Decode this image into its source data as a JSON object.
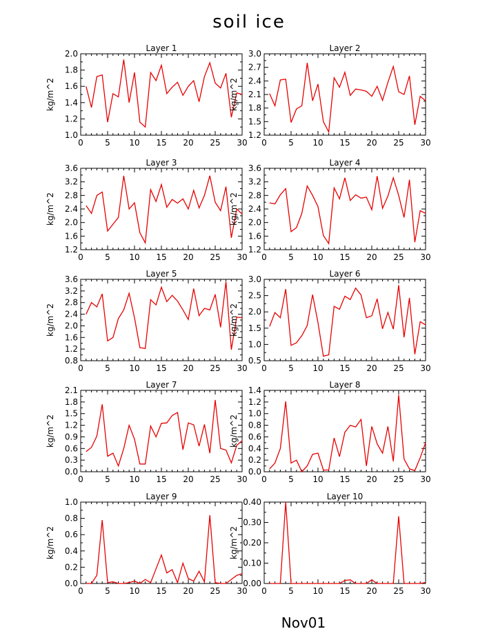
{
  "title": "soil ice",
  "xlabel": "Nov01",
  "chart_data": [
    {
      "type": "line",
      "title": "Layer 1",
      "ylabel": "kg/m^2",
      "xlim": [
        0,
        30
      ],
      "ylim": [
        1.0,
        2.0
      ],
      "xticks": [
        0,
        5,
        10,
        15,
        20,
        25,
        30
      ],
      "yticks": [
        "1.0",
        "1.2",
        "1.4",
        "1.6",
        "1.8",
        "2.0"
      ],
      "color": "#e60000",
      "x": [
        1,
        2,
        3,
        4,
        5,
        6,
        7,
        8,
        9,
        10,
        11,
        12,
        13,
        14,
        15,
        16,
        17,
        18,
        19,
        20,
        21,
        22,
        23,
        24,
        25,
        26,
        27,
        28,
        29,
        30
      ],
      "values": [
        1.6,
        1.34,
        1.72,
        1.74,
        1.16,
        1.51,
        1.47,
        1.93,
        1.4,
        1.77,
        1.16,
        1.1,
        1.77,
        1.67,
        1.86,
        1.51,
        1.59,
        1.65,
        1.49,
        1.6,
        1.67,
        1.41,
        1.72,
        1.89,
        1.64,
        1.58,
        1.76,
        1.22,
        1.52,
        1.5
      ]
    },
    {
      "type": "line",
      "title": "Layer 2",
      "ylabel": "kg/m^2",
      "xlim": [
        0,
        30
      ],
      "ylim": [
        1.2,
        3.0
      ],
      "xticks": [
        0,
        5,
        10,
        15,
        20,
        25,
        30
      ],
      "yticks": [
        "1.2",
        "1.5",
        "1.8",
        "2.1",
        "2.4",
        "2.7",
        "3.0"
      ],
      "color": "#e60000",
      "x": [
        1,
        2,
        3,
        4,
        5,
        6,
        7,
        8,
        9,
        10,
        11,
        12,
        13,
        14,
        15,
        16,
        17,
        18,
        19,
        20,
        21,
        22,
        23,
        24,
        25,
        26,
        27,
        28,
        29,
        30
      ],
      "values": [
        2.12,
        1.85,
        2.42,
        2.44,
        1.48,
        1.78,
        1.85,
        2.8,
        1.96,
        2.33,
        1.5,
        1.27,
        2.47,
        2.26,
        2.59,
        2.08,
        2.22,
        2.2,
        2.17,
        2.06,
        2.28,
        1.97,
        2.37,
        2.72,
        2.16,
        2.1,
        2.51,
        1.43,
        2.06,
        1.96
      ]
    },
    {
      "type": "line",
      "title": "Layer 3",
      "ylabel": "kg/m^2",
      "xlim": [
        0,
        30
      ],
      "ylim": [
        1.2,
        3.6
      ],
      "xticks": [
        0,
        5,
        10,
        15,
        20,
        25,
        30
      ],
      "yticks": [
        "1.2",
        "1.6",
        "2.0",
        "2.4",
        "2.8",
        "3.2",
        "3.6"
      ],
      "color": "#e60000",
      "x": [
        1,
        2,
        3,
        4,
        5,
        6,
        7,
        8,
        9,
        10,
        11,
        12,
        13,
        14,
        15,
        16,
        17,
        18,
        19,
        20,
        21,
        22,
        23,
        24,
        25,
        26,
        27,
        28,
        29,
        30
      ],
      "values": [
        2.5,
        2.27,
        2.8,
        2.9,
        1.75,
        1.95,
        2.15,
        3.38,
        2.4,
        2.58,
        1.7,
        1.4,
        2.97,
        2.62,
        3.12,
        2.45,
        2.68,
        2.57,
        2.7,
        2.4,
        2.95,
        2.43,
        2.8,
        3.38,
        2.6,
        2.35,
        3.06,
        1.55,
        2.4,
        2.25
      ]
    },
    {
      "type": "line",
      "title": "Layer 4",
      "ylabel": "kg/m^2",
      "xlim": [
        0,
        30
      ],
      "ylim": [
        1.2,
        3.6
      ],
      "xticks": [
        0,
        5,
        10,
        15,
        20,
        25,
        30
      ],
      "yticks": [
        "1.2",
        "1.6",
        "2.0",
        "2.4",
        "2.8",
        "3.2",
        "3.6"
      ],
      "color": "#e60000",
      "x": [
        1,
        2,
        3,
        4,
        5,
        6,
        7,
        8,
        9,
        10,
        11,
        12,
        13,
        14,
        15,
        16,
        17,
        18,
        19,
        20,
        21,
        22,
        23,
        24,
        25,
        26,
        27,
        28,
        29,
        30
      ],
      "values": [
        2.58,
        2.55,
        2.82,
        3.0,
        1.73,
        1.85,
        2.27,
        3.08,
        2.8,
        2.47,
        1.62,
        1.38,
        3.02,
        2.7,
        3.32,
        2.65,
        2.82,
        2.72,
        2.75,
        2.38,
        3.37,
        2.42,
        2.78,
        3.32,
        2.8,
        2.15,
        3.26,
        1.42,
        2.35,
        2.27
      ]
    },
    {
      "type": "line",
      "title": "Layer 5",
      "ylabel": "kg/m^2",
      "xlim": [
        0,
        30
      ],
      "ylim": [
        0.8,
        3.6
      ],
      "xticks": [
        0,
        5,
        10,
        15,
        20,
        25,
        30
      ],
      "yticks": [
        "0.8",
        "1.2",
        "1.6",
        "2.0",
        "2.4",
        "2.8",
        "3.2",
        "3.6"
      ],
      "color": "#e60000",
      "x": [
        1,
        2,
        3,
        4,
        5,
        6,
        7,
        8,
        9,
        10,
        11,
        12,
        13,
        14,
        15,
        16,
        17,
        18,
        19,
        20,
        21,
        22,
        23,
        24,
        25,
        26,
        27,
        28,
        29,
        30
      ],
      "values": [
        2.4,
        2.8,
        2.65,
        3.1,
        1.48,
        1.6,
        2.25,
        2.55,
        3.12,
        2.28,
        1.25,
        1.22,
        2.9,
        2.72,
        3.33,
        2.83,
        3.05,
        2.85,
        2.55,
        2.22,
        3.28,
        2.35,
        2.6,
        2.55,
        3.08,
        1.95,
        3.52,
        1.18,
        2.3,
        2.28
      ]
    },
    {
      "type": "line",
      "title": "Layer 6",
      "ylabel": "kg/m^2",
      "xlim": [
        0,
        30
      ],
      "ylim": [
        0.5,
        3.0
      ],
      "xticks": [
        0,
        5,
        10,
        15,
        20,
        25,
        30
      ],
      "yticks": [
        "0.5",
        "1.0",
        "1.5",
        "2.0",
        "2.5",
        "3.0"
      ],
      "color": "#e60000",
      "x": [
        1,
        2,
        3,
        4,
        5,
        6,
        7,
        8,
        9,
        10,
        11,
        12,
        13,
        14,
        15,
        16,
        17,
        18,
        19,
        20,
        21,
        22,
        23,
        24,
        25,
        26,
        27,
        28,
        29,
        30
      ],
      "values": [
        1.55,
        1.98,
        1.82,
        2.7,
        0.97,
        1.05,
        1.27,
        1.58,
        2.53,
        1.67,
        0.64,
        0.68,
        2.17,
        2.08,
        2.48,
        2.38,
        2.73,
        2.52,
        1.82,
        1.88,
        2.4,
        1.48,
        1.98,
        1.47,
        2.82,
        1.22,
        2.43,
        0.7,
        1.7,
        1.6
      ]
    },
    {
      "type": "line",
      "title": "Layer 7",
      "ylabel": "kg/m^2",
      "xlim": [
        0,
        30
      ],
      "ylim": [
        0.0,
        2.1
      ],
      "xticks": [
        0,
        5,
        10,
        15,
        20,
        25,
        30
      ],
      "yticks": [
        "0.0",
        "0.3",
        "0.6",
        "0.9",
        "1.2",
        "1.5",
        "1.8",
        "2.1"
      ],
      "color": "#e60000",
      "x": [
        1,
        2,
        3,
        4,
        5,
        6,
        7,
        8,
        9,
        10,
        11,
        12,
        13,
        14,
        15,
        16,
        17,
        18,
        19,
        20,
        21,
        22,
        23,
        24,
        25,
        26,
        27,
        28,
        29,
        30
      ],
      "values": [
        0.52,
        0.63,
        0.92,
        1.74,
        0.4,
        0.48,
        0.15,
        0.6,
        1.2,
        0.84,
        0.2,
        0.2,
        1.18,
        0.9,
        1.25,
        1.26,
        1.45,
        1.53,
        0.57,
        1.26,
        1.21,
        0.66,
        1.22,
        0.48,
        1.85,
        0.6,
        0.56,
        0.23,
        0.68,
        0.8
      ]
    },
    {
      "type": "line",
      "title": "Layer 8",
      "ylabel": "kg/m^2",
      "xlim": [
        0,
        30
      ],
      "ylim": [
        0.0,
        1.4
      ],
      "xticks": [
        0,
        5,
        10,
        15,
        20,
        25,
        30
      ],
      "yticks": [
        "0.0",
        "0.2",
        "0.4",
        "0.6",
        "0.8",
        "1.0",
        "1.2",
        "1.4"
      ],
      "color": "#e60000",
      "x": [
        1,
        2,
        3,
        4,
        5,
        6,
        7,
        8,
        9,
        10,
        11,
        12,
        13,
        14,
        15,
        16,
        17,
        18,
        19,
        20,
        21,
        22,
        23,
        24,
        25,
        26,
        27,
        28,
        29,
        30
      ],
      "values": [
        0.05,
        0.15,
        0.4,
        1.21,
        0.15,
        0.2,
        0.0,
        0.1,
        0.3,
        0.32,
        0.03,
        0.03,
        0.58,
        0.26,
        0.68,
        0.8,
        0.77,
        0.9,
        0.1,
        0.78,
        0.48,
        0.32,
        0.78,
        0.18,
        1.32,
        0.22,
        0.05,
        0.02,
        0.24,
        0.5
      ]
    },
    {
      "type": "line",
      "title": "Layer 9",
      "ylabel": "kg/m^2",
      "xlim": [
        0,
        30
      ],
      "ylim": [
        0.0,
        1.0
      ],
      "xticks": [
        0,
        5,
        10,
        15,
        20,
        25,
        30
      ],
      "yticks": [
        "0.0",
        "0.2",
        "0.4",
        "0.6",
        "0.8",
        "1.0"
      ],
      "color": "#e60000",
      "x": [
        1,
        2,
        3,
        4,
        5,
        6,
        7,
        8,
        9,
        10,
        11,
        12,
        13,
        14,
        15,
        16,
        17,
        18,
        19,
        20,
        21,
        22,
        23,
        24,
        25,
        26,
        27,
        28,
        29,
        30
      ],
      "values": [
        0.0,
        0.0,
        0.1,
        0.78,
        0.01,
        0.02,
        0.0,
        0.0,
        0.01,
        0.03,
        0.0,
        0.05,
        0.01,
        0.18,
        0.35,
        0.13,
        0.17,
        0.01,
        0.25,
        0.06,
        0.03,
        0.15,
        0.02,
        0.84,
        0.01,
        0.0,
        0.0,
        0.05,
        0.1,
        0.12
      ]
    },
    {
      "type": "line",
      "title": "Layer 10",
      "ylabel": "kg/m^2",
      "xlim": [
        0,
        30
      ],
      "ylim": [
        0.0,
        0.4
      ],
      "xticks": [
        0,
        5,
        10,
        15,
        20,
        25,
        30
      ],
      "yticks": [
        "0.00",
        "0.10",
        "0.20",
        "0.30",
        "0.40"
      ],
      "color": "#e60000",
      "x": [
        1,
        2,
        3,
        4,
        5,
        6,
        7,
        8,
        9,
        10,
        11,
        12,
        13,
        14,
        15,
        16,
        17,
        18,
        19,
        20,
        21,
        22,
        23,
        24,
        25,
        26,
        27,
        28,
        29,
        30
      ],
      "values": [
        0.0,
        0.0,
        0.0,
        0.4,
        0.0,
        0.0,
        0.0,
        0.0,
        0.0,
        0.0,
        0.0,
        0.0,
        0.0,
        0.0,
        0.015,
        0.018,
        0.0,
        0.0,
        0.0,
        0.018,
        0.0,
        0.0,
        0.0,
        0.0,
        0.33,
        0.0,
        0.0,
        0.0,
        0.0,
        0.005
      ]
    }
  ]
}
